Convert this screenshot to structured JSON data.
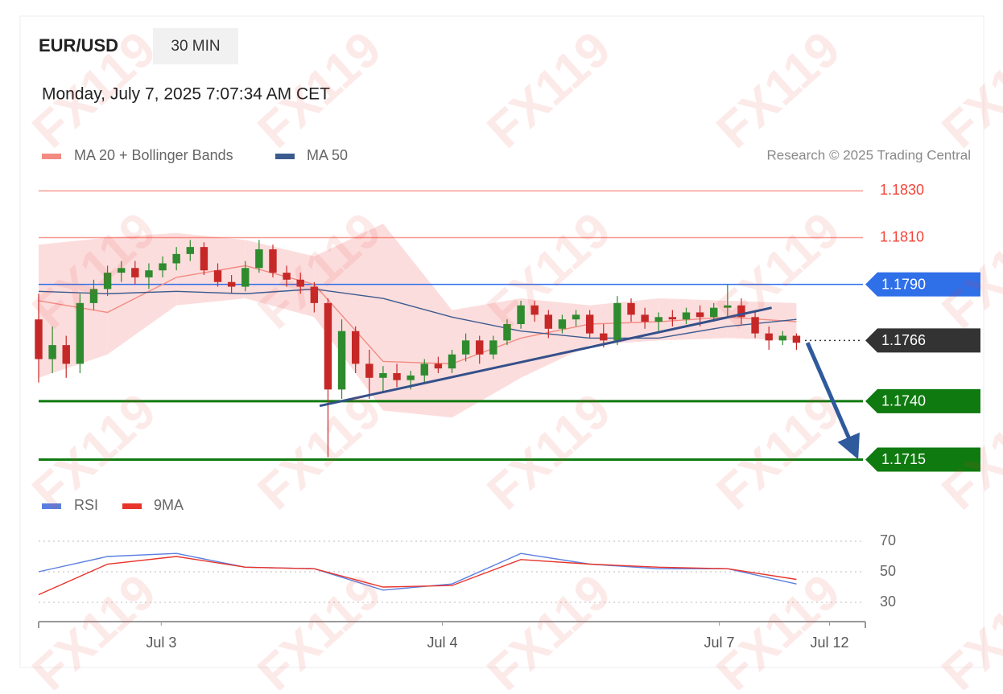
{
  "header": {
    "symbol": "EUR/USD",
    "interval": "30 MIN",
    "timestamp": "Monday, July 7, 2025 7:07:34 AM CET",
    "credit": "Research © 2025 Trading Central",
    "watermark": "FX119"
  },
  "chart_data": [
    {
      "type": "candlestick",
      "up_color": "#2e8b2e",
      "down_color": "#c62828",
      "xlim": [
        0,
        60
      ],
      "ylim": [
        1.171,
        1.1836
      ],
      "x": [
        0,
        1,
        2,
        3,
        4,
        5,
        6,
        7,
        8,
        9,
        10,
        11,
        12,
        13,
        14,
        15,
        16,
        17,
        18,
        19,
        20,
        21,
        22,
        23,
        24,
        25,
        26,
        27,
        28,
        29,
        30,
        31,
        32,
        33,
        34,
        35,
        36,
        37,
        38,
        39,
        40,
        41,
        42,
        43,
        44,
        45,
        46,
        47,
        48,
        49,
        50,
        51,
        52,
        53,
        54,
        55
      ],
      "open": [
        1.1775,
        1.1758,
        1.1764,
        1.1756,
        1.1782,
        1.1788,
        1.1795,
        1.1797,
        1.1793,
        1.1796,
        1.1799,
        1.1803,
        1.1806,
        1.1796,
        1.1791,
        1.1789,
        1.1797,
        1.1805,
        1.1795,
        1.1792,
        1.1789,
        1.1782,
        1.1745,
        1.177,
        1.1756,
        1.175,
        1.1752,
        1.1749,
        1.1751,
        1.1756,
        1.1754,
        1.176,
        1.1766,
        1.176,
        1.1766,
        1.1773,
        1.1781,
        1.1777,
        1.1771,
        1.1775,
        1.1777,
        1.1769,
        1.1766,
        1.1782,
        1.1777,
        1.1774,
        1.1776,
        1.1775,
        1.1778,
        1.1776,
        1.178,
        1.1781,
        1.1776,
        1.1769,
        1.1766,
        1.1768
      ],
      "high": [
        1.1786,
        1.1772,
        1.1768,
        1.1786,
        1.1792,
        1.1798,
        1.18,
        1.18,
        1.1799,
        1.1802,
        1.1806,
        1.1809,
        1.1808,
        1.1799,
        1.1794,
        1.18,
        1.1809,
        1.1807,
        1.1798,
        1.1795,
        1.1791,
        1.1784,
        1.1775,
        1.1772,
        1.1762,
        1.1755,
        1.1756,
        1.1753,
        1.1758,
        1.1759,
        1.1762,
        1.1769,
        1.1768,
        1.1768,
        1.1775,
        1.1783,
        1.1783,
        1.1779,
        1.1777,
        1.1779,
        1.1779,
        1.1773,
        1.1785,
        1.1784,
        1.178,
        1.1778,
        1.1779,
        1.178,
        1.1781,
        1.1782,
        1.179,
        1.1784,
        1.1778,
        1.1772,
        1.177,
        1.1769
      ],
      "low": [
        1.1748,
        1.1752,
        1.175,
        1.1752,
        1.1779,
        1.1785,
        1.1791,
        1.179,
        1.1788,
        1.1793,
        1.1796,
        1.18,
        1.1794,
        1.1789,
        1.1786,
        1.1787,
        1.1795,
        1.1793,
        1.1789,
        1.1786,
        1.1778,
        1.1716,
        1.1741,
        1.1752,
        1.1741,
        1.1744,
        1.1746,
        1.1745,
        1.1748,
        1.1752,
        1.1752,
        1.1757,
        1.1756,
        1.1758,
        1.1764,
        1.1771,
        1.1774,
        1.1767,
        1.1769,
        1.1772,
        1.1767,
        1.1763,
        1.1764,
        1.1774,
        1.1771,
        1.177,
        1.1772,
        1.1773,
        1.1772,
        1.1774,
        1.1776,
        1.1773,
        1.1767,
        1.1762,
        1.1764,
        1.1762
      ],
      "close": [
        1.1758,
        1.1764,
        1.1756,
        1.1782,
        1.1788,
        1.1795,
        1.1797,
        1.1793,
        1.1796,
        1.1799,
        1.1803,
        1.1806,
        1.1796,
        1.1791,
        1.1789,
        1.1797,
        1.1805,
        1.1795,
        1.1792,
        1.1789,
        1.1782,
        1.1745,
        1.177,
        1.1756,
        1.175,
        1.1752,
        1.1749,
        1.1751,
        1.1756,
        1.1754,
        1.176,
        1.1766,
        1.176,
        1.1766,
        1.1773,
        1.1781,
        1.1777,
        1.1771,
        1.1775,
        1.1777,
        1.1769,
        1.1766,
        1.1782,
        1.1777,
        1.1774,
        1.1776,
        1.1775,
        1.1778,
        1.1776,
        1.178,
        1.1781,
        1.1776,
        1.1769,
        1.1766,
        1.1768,
        1.1765
      ],
      "series": [
        {
          "name": "MA 20 + Bollinger Bands",
          "color": "#f28b82",
          "band_color": "#fbd5d5",
          "x": [
            0,
            5,
            10,
            15,
            20,
            25,
            30,
            35,
            40,
            45,
            50,
            55
          ],
          "values": [
            1.1783,
            1.1778,
            1.1793,
            1.1798,
            1.179,
            1.1757,
            1.1756,
            1.1767,
            1.1773,
            1.1774,
            1.1776,
            1.1774
          ],
          "upper": [
            1.1807,
            1.181,
            1.1812,
            1.1809,
            1.1802,
            1.1816,
            1.1779,
            1.1784,
            1.1781,
            1.1784,
            1.1783,
            1.1782
          ],
          "lower": [
            1.175,
            1.176,
            1.1781,
            1.1784,
            1.1776,
            1.1736,
            1.1733,
            1.175,
            1.1764,
            1.1766,
            1.1767,
            1.1766
          ]
        },
        {
          "name": "MA 50",
          "color": "#3b5b8f",
          "x": [
            0,
            5,
            10,
            15,
            20,
            25,
            30,
            35,
            40,
            45,
            50,
            55
          ],
          "values": [
            1.1787,
            1.1786,
            1.1787,
            1.1786,
            1.1788,
            1.1784,
            1.1776,
            1.177,
            1.1767,
            1.1767,
            1.1772,
            1.1775
          ]
        }
      ],
      "trendline": {
        "color": "#34508a",
        "x": [
          20.4,
          53.2
        ],
        "values": [
          1.1738,
          1.178
        ]
      },
      "arrow": {
        "color": "#2f5a9c",
        "x": [
          55.8,
          59.6
        ],
        "values": [
          1.1765,
          1.1715
        ]
      },
      "levels": [
        {
          "value": 1.183,
          "label": "1.1830",
          "color": "#f44336",
          "style": "line"
        },
        {
          "value": 1.181,
          "label": "1.1810",
          "color": "#f44336",
          "style": "line"
        },
        {
          "value": 1.179,
          "label": "1.1790",
          "color": "#2f6fe8",
          "style": "tag"
        },
        {
          "value": 1.1766,
          "label": "1.1766",
          "color": "#333333",
          "style": "dotted-tag"
        },
        {
          "value": 1.174,
          "label": "1.1740",
          "color": "#0f7a0f",
          "style": "tag"
        },
        {
          "value": 1.1715,
          "label": "1.1715",
          "color": "#0f7a0f",
          "style": "tag"
        }
      ]
    },
    {
      "type": "line",
      "xlim": [
        0,
        60
      ],
      "ylim": [
        20,
        80
      ],
      "yticks": [
        70,
        50,
        30
      ],
      "xticks": [
        {
          "value": 8.9,
          "label": "Jul 3"
        },
        {
          "value": 29.3,
          "label": "Jul 4"
        },
        {
          "value": 49.4,
          "label": "Jul 7"
        },
        {
          "value": 57.4,
          "label": "Jul 12"
        }
      ],
      "x": [
        0,
        5,
        10,
        15,
        20,
        25,
        30,
        35,
        40,
        45,
        50,
        55
      ],
      "series": [
        {
          "name": "RSI",
          "color": "#5b7fe0",
          "values": [
            50,
            60,
            62,
            53,
            52,
            38,
            42,
            62,
            55,
            52,
            52,
            42
          ]
        },
        {
          "name": "9MA",
          "color": "#e8342a",
          "values": [
            35,
            55,
            60,
            53,
            52,
            40,
            41,
            58,
            55,
            53,
            52,
            45
          ]
        }
      ]
    }
  ]
}
